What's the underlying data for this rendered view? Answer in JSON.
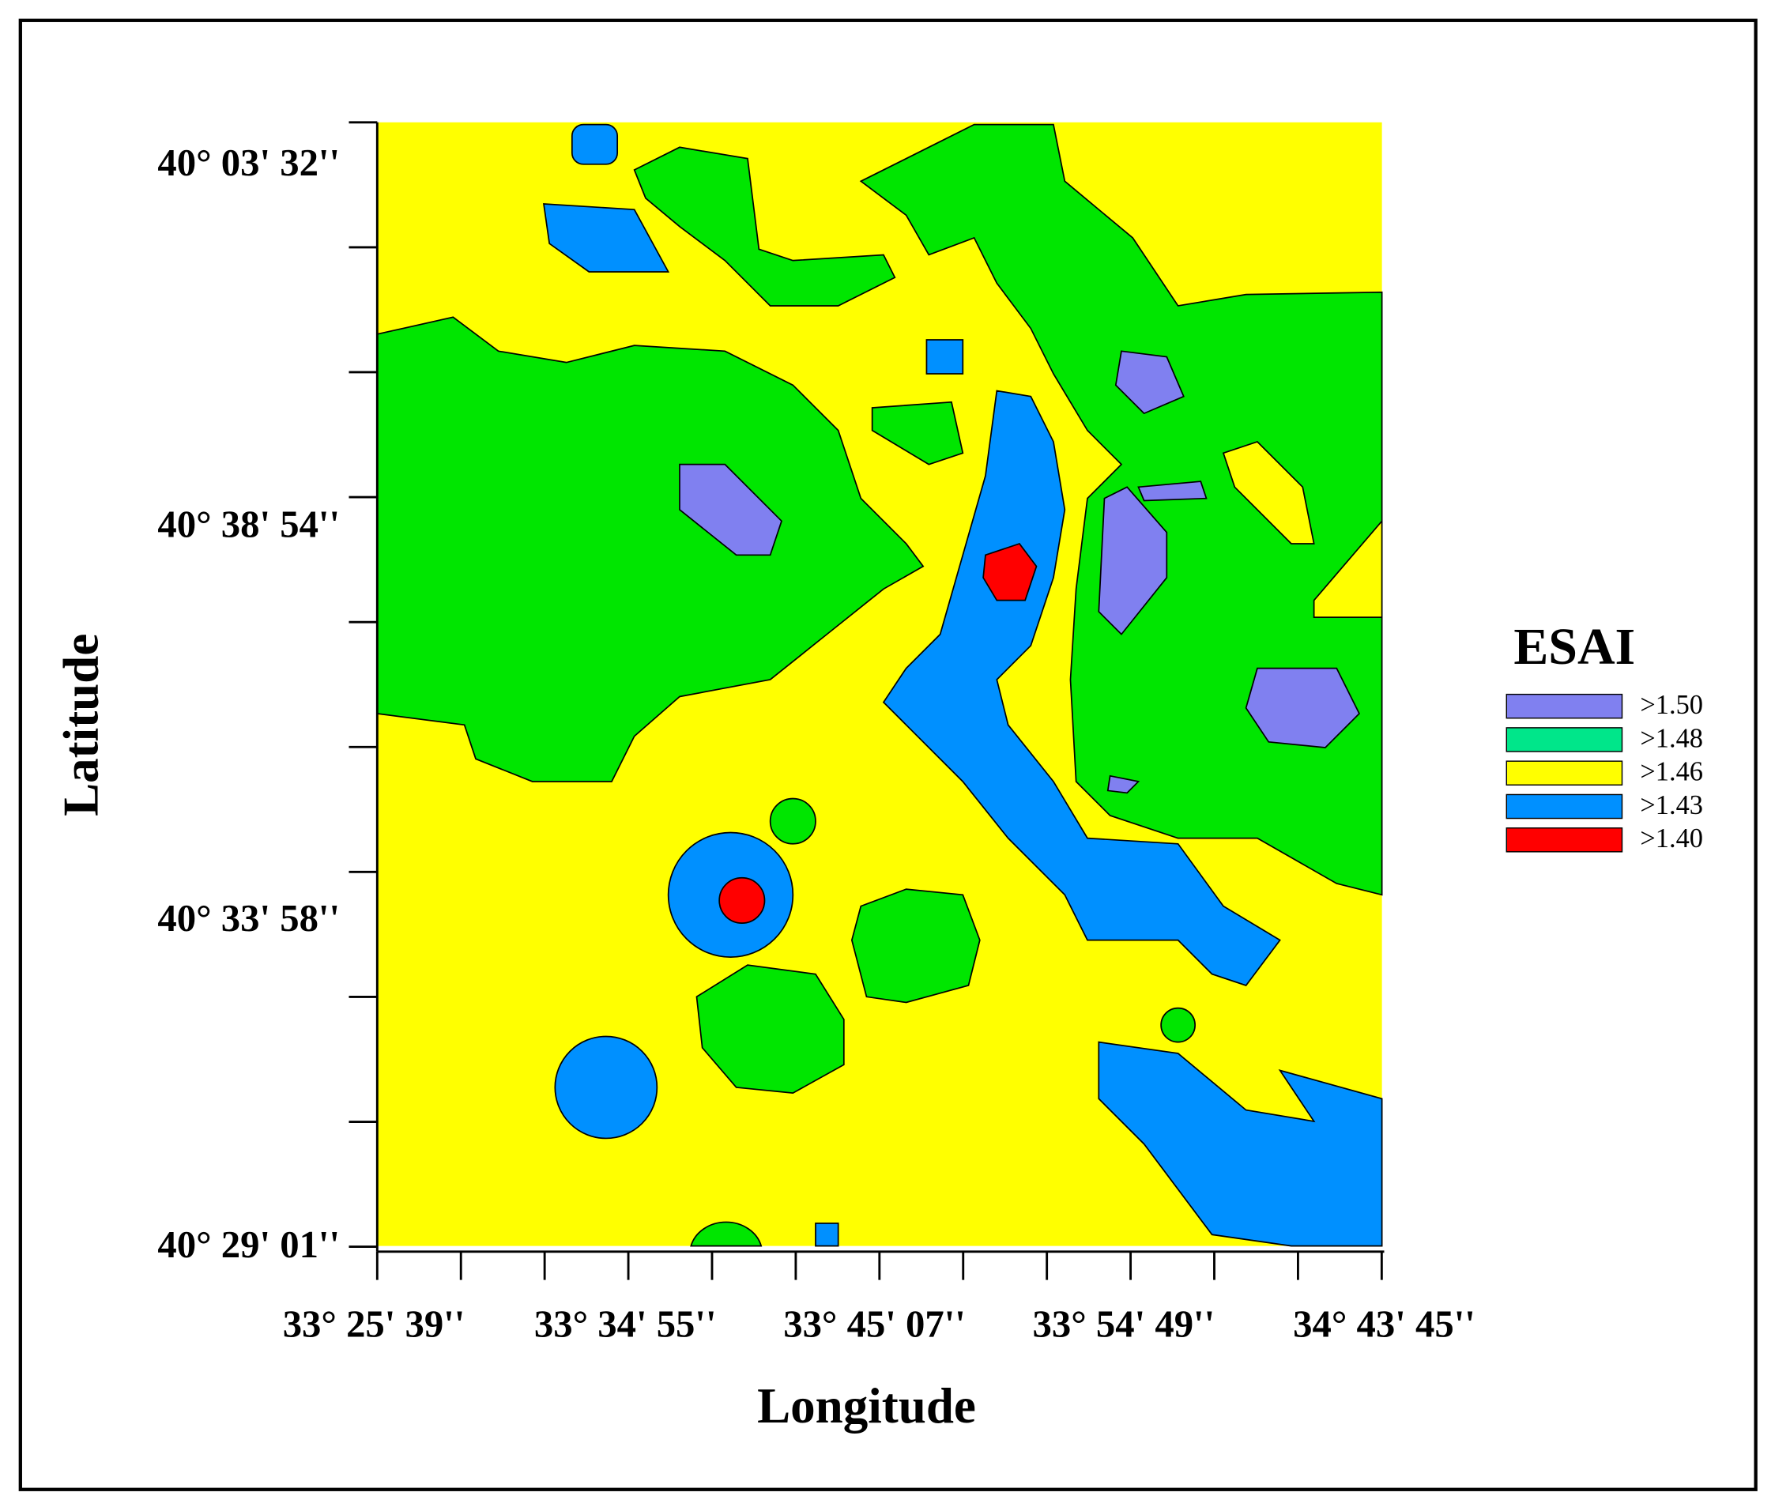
{
  "map": {
    "title": "ESAI",
    "x_label": "Longitude",
    "y_label": "Latitude",
    "x_ticks": [
      "33° 25' 39''",
      "33° 34' 55''",
      "33° 45' 07''",
      "33° 54' 49''",
      "34° 43' 45''"
    ],
    "y_ticks": [
      "40° 03' 32''",
      "40° 38' 54''",
      "40° 33' 58''",
      "40° 29' 01''"
    ],
    "legend": [
      {
        "label": ">1.50",
        "color": "#8080f0"
      },
      {
        "label": ">1.48",
        "color": "#00e68a"
      },
      {
        "label": ">1.46",
        "color": "#ffff00"
      },
      {
        "label": ">1.43",
        "color": "#0090ff"
      },
      {
        "label": ">1.40",
        "color": "#ff0000"
      }
    ]
  }
}
